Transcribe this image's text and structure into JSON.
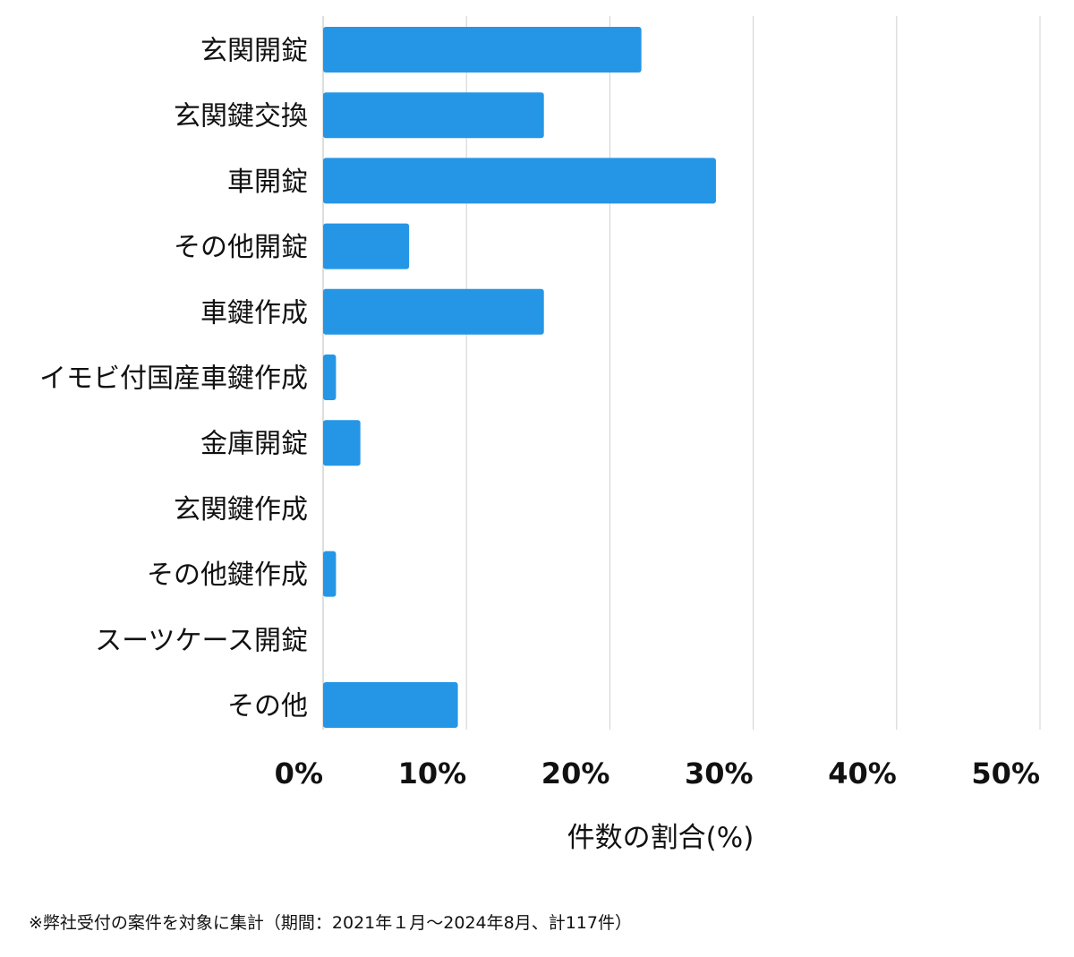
{
  "chart_data": {
    "type": "bar",
    "orientation": "horizontal",
    "categories": [
      "玄関開錠",
      "玄関鍵交換",
      "車開錠",
      "その他開錠",
      "車鍵作成",
      "イモビ付国産車鍵作成",
      "金庫開錠",
      "玄関鍵作成",
      "その他鍵作成",
      "スーツケース開錠",
      "その他"
    ],
    "values": [
      22.2,
      15.4,
      27.4,
      6.0,
      15.4,
      0.9,
      2.6,
      0.0,
      0.9,
      0.0,
      9.4
    ],
    "xlim": [
      0,
      50
    ],
    "xticks": [
      0,
      10,
      20,
      30,
      40,
      50
    ],
    "xtick_labels": [
      "0%",
      "10%",
      "20%",
      "30%",
      "40%",
      "50%"
    ],
    "xlabel": "件数の割合(%)",
    "ylabel": "",
    "title": "",
    "grid": true,
    "legend": "none",
    "bar_color": "#2596e6",
    "grid_color": "#d0d0d0"
  },
  "footnote": "※弊社受付の案件を対象に集計（期間：2021年１月〜2024年8月、計117件）"
}
